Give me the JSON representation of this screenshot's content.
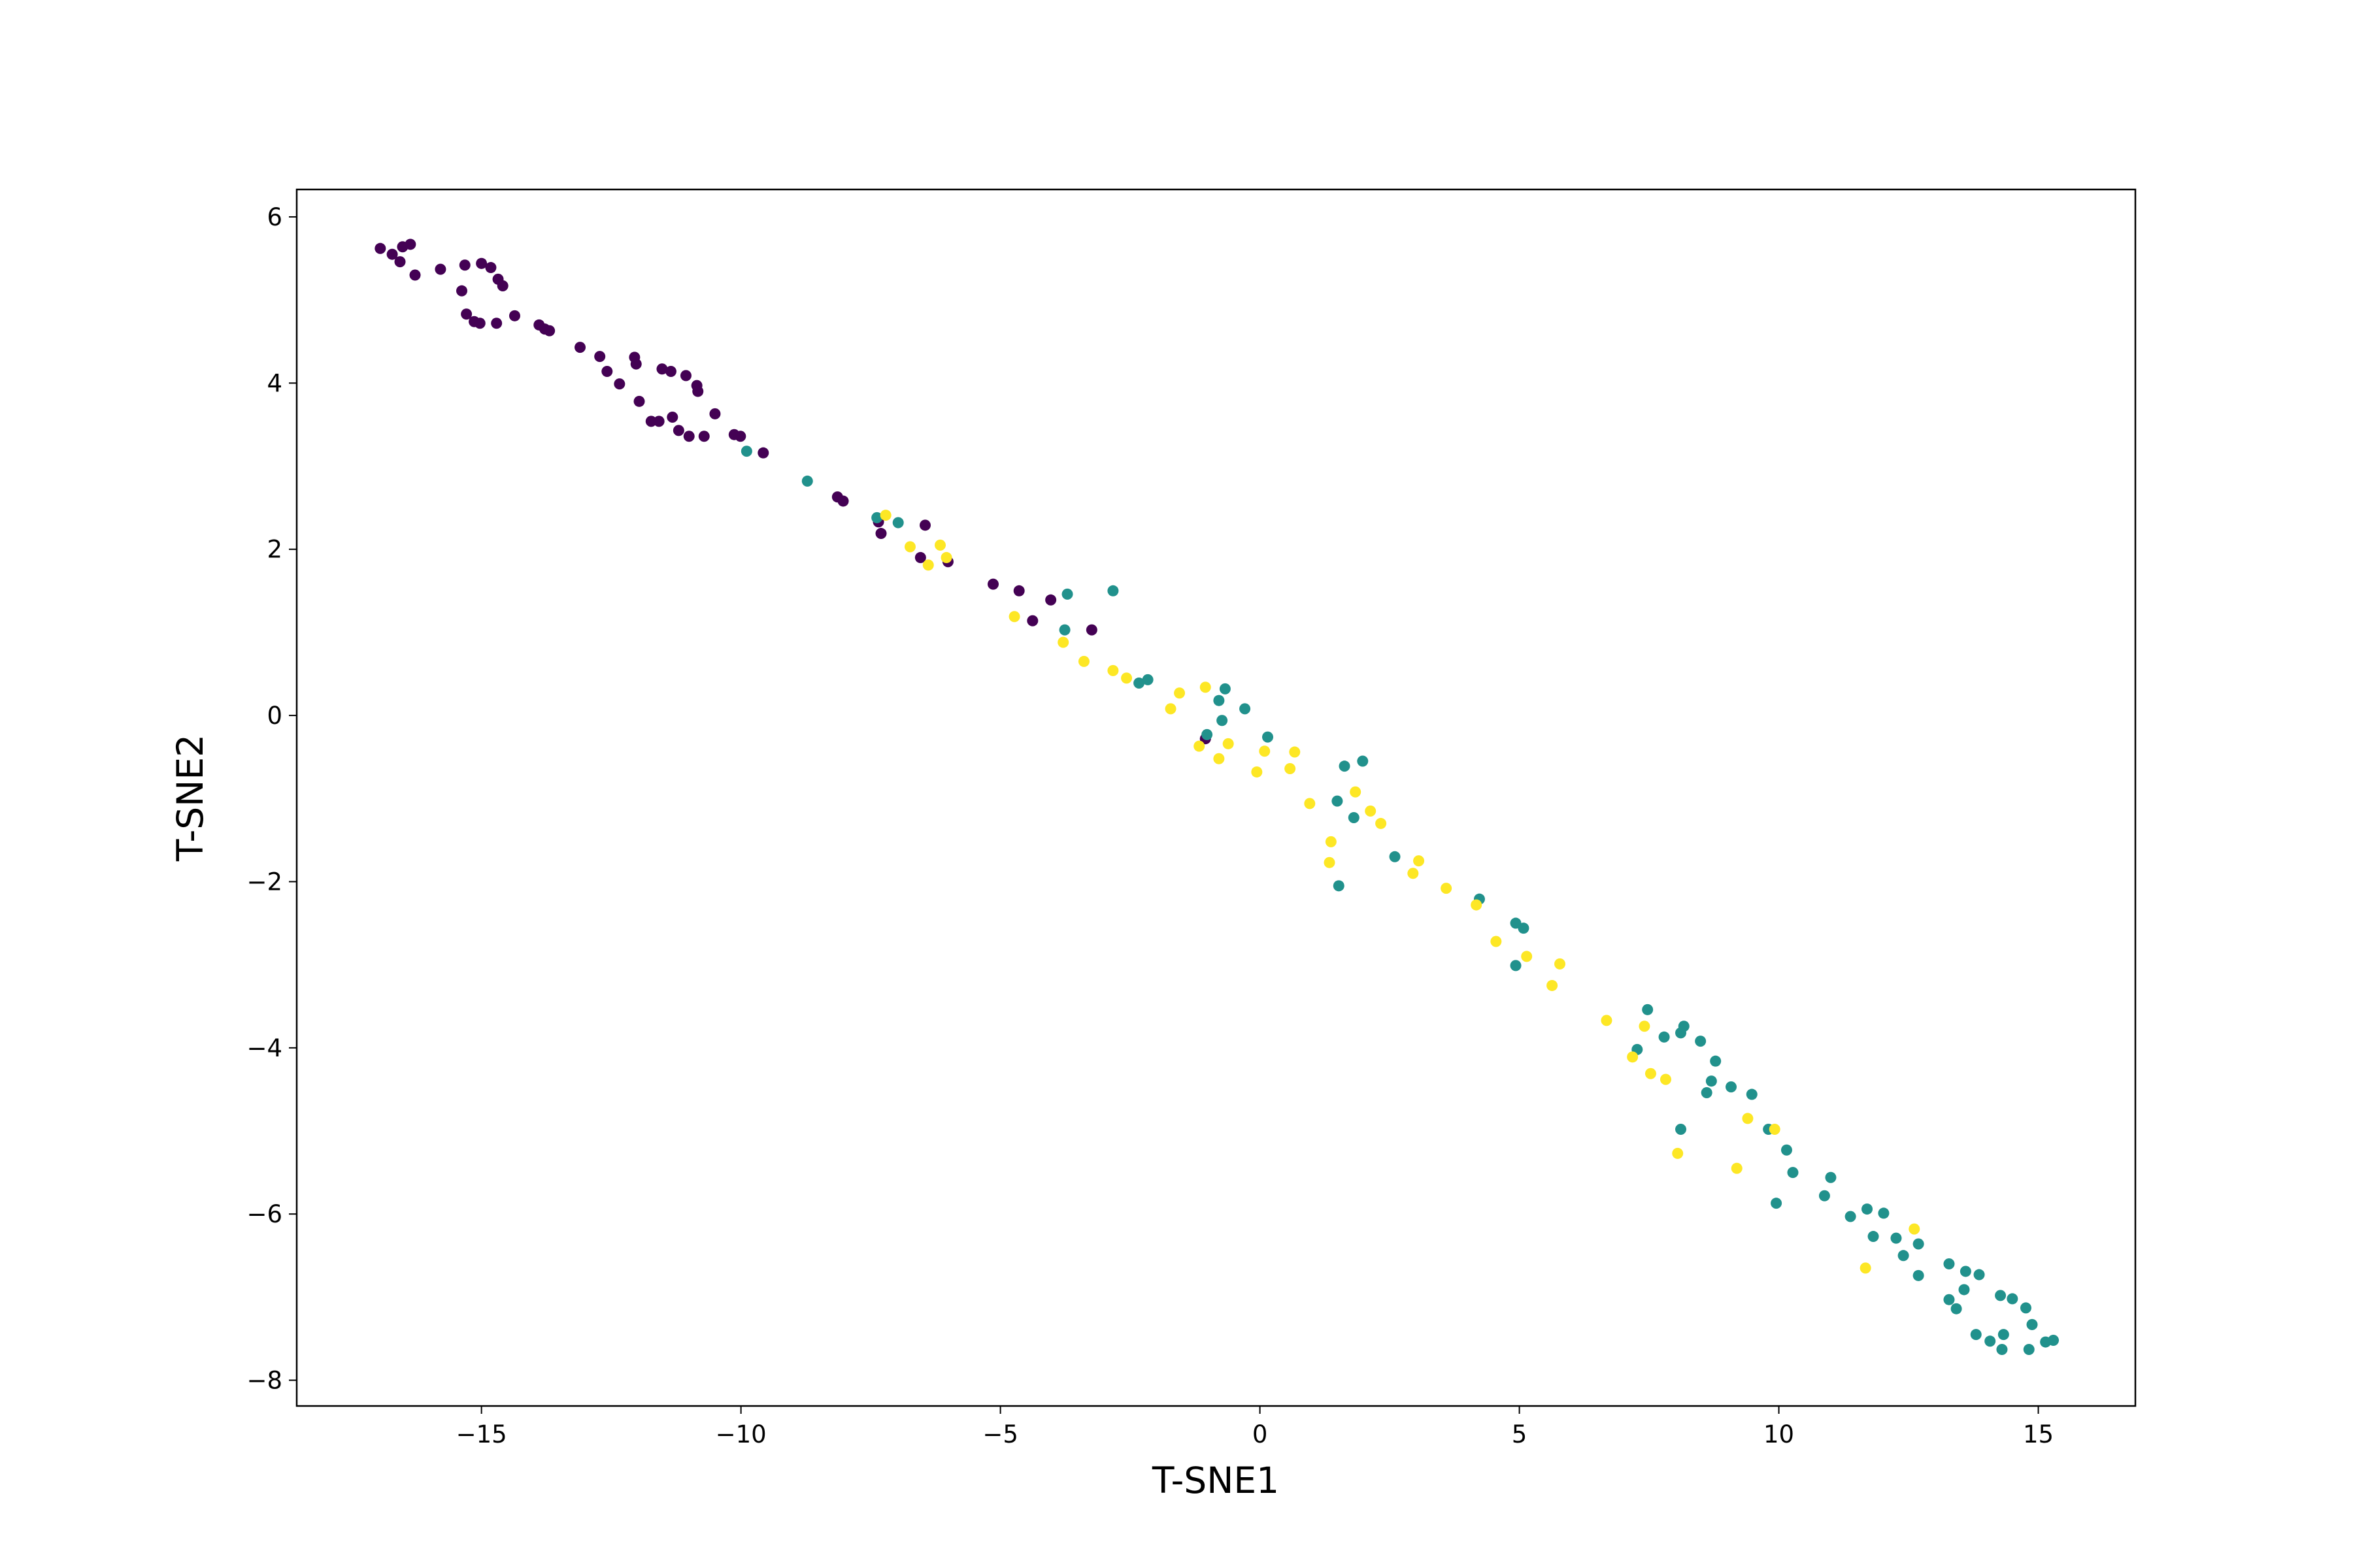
{
  "chart_data": {
    "type": "scatter",
    "x_label": "T-SNE1",
    "y_label": "T-SNE2",
    "xlim": [
      -18.56,
      16.87
    ],
    "ylim": [
      -8.31,
      6.33
    ],
    "xticks": [
      {
        "value": -15,
        "label": "−15"
      },
      {
        "value": -10,
        "label": "−10"
      },
      {
        "value": -5,
        "label": "−5"
      },
      0,
      5,
      10,
      15
    ],
    "yticks": [
      {
        "value": -8,
        "label": "−8"
      },
      {
        "value": -6,
        "label": "−6"
      },
      {
        "value": -4,
        "label": "−4"
      },
      {
        "value": -2,
        "label": "−2"
      },
      0,
      2,
      4,
      6
    ],
    "series": [
      {
        "color": "#440154",
        "x": [
          -16.95,
          -16.72,
          -16.57,
          -16.52,
          -16.37,
          -16.28,
          -15.79,
          -15.38,
          -15.32,
          -15.29,
          -15.14,
          -15.03,
          -15.0,
          -14.82,
          -14.68,
          -14.59,
          -14.71,
          -14.36,
          -13.89,
          -13.78,
          -13.69,
          -13.1,
          -12.72,
          -12.58,
          -12.34,
          -12.05,
          -12.02,
          -11.96,
          -11.73,
          -11.58,
          -11.52,
          -11.35,
          -11.32,
          -11.2,
          -11.06,
          -11.0,
          -10.85,
          -10.83,
          -10.71,
          -10.5,
          -10.13,
          -10.01,
          -9.57,
          -8.14,
          -8.03,
          -7.35,
          -7.3,
          -6.45,
          -6.54,
          -6.01,
          -5.14,
          -4.64,
          -4.38,
          -4.03,
          -3.24,
          -1.05
        ],
        "y": [
          5.62,
          5.55,
          5.46,
          5.64,
          5.67,
          5.3,
          5.37,
          5.11,
          5.42,
          4.83,
          4.74,
          4.72,
          5.44,
          5.39,
          5.25,
          5.17,
          4.72,
          4.81,
          4.7,
          4.65,
          4.63,
          4.43,
          4.32,
          4.14,
          3.99,
          4.31,
          4.23,
          3.78,
          3.54,
          3.54,
          4.17,
          4.14,
          3.59,
          3.43,
          4.09,
          3.36,
          3.97,
          3.9,
          3.36,
          3.63,
          3.38,
          3.36,
          3.16,
          2.63,
          2.58,
          2.33,
          2.19,
          2.29,
          1.9,
          1.85,
          1.58,
          1.5,
          1.14,
          1.39,
          1.03,
          -0.28
        ]
      },
      {
        "color": "#21918c",
        "x": [
          -9.89,
          -8.72,
          -7.38,
          -6.97,
          -3.71,
          -2.83,
          -3.76,
          -2.33,
          -2.16,
          -0.67,
          -0.79,
          -0.29,
          -0.73,
          0.15,
          -1.02,
          1.63,
          1.98,
          1.49,
          1.81,
          1.52,
          2.6,
          4.23,
          4.93,
          5.08,
          4.93,
          7.47,
          7.27,
          7.79,
          8.11,
          8.17,
          8.49,
          8.78,
          8.7,
          8.61,
          9.08,
          9.48,
          8.11,
          9.8,
          10.15,
          10.27,
          11.0,
          10.88,
          9.95,
          11.38,
          11.7,
          12.02,
          11.82,
          12.26,
          12.4,
          12.69,
          12.69,
          13.28,
          13.6,
          13.86,
          13.57,
          13.28,
          13.42,
          14.27,
          14.5,
          14.76,
          14.88,
          13.8,
          14.07,
          14.33,
          14.3,
          14.82,
          15.14,
          15.29
        ],
        "y": [
          3.18,
          2.82,
          2.38,
          2.32,
          1.46,
          1.5,
          1.03,
          0.39,
          0.43,
          0.32,
          0.18,
          0.08,
          -0.06,
          -0.26,
          -0.23,
          -0.61,
          -0.55,
          -1.03,
          -1.23,
          -2.05,
          -1.7,
          -2.21,
          -2.5,
          -2.56,
          -3.01,
          -3.54,
          -4.02,
          -3.87,
          -3.82,
          -3.74,
          -3.92,
          -4.16,
          -4.4,
          -4.54,
          -4.47,
          -4.56,
          -4.98,
          -4.98,
          -5.23,
          -5.5,
          -5.56,
          -5.78,
          -5.87,
          -6.03,
          -5.94,
          -5.99,
          -6.27,
          -6.29,
          -6.5,
          -6.36,
          -6.74,
          -6.6,
          -6.69,
          -6.73,
          -6.91,
          -7.03,
          -7.14,
          -6.98,
          -7.02,
          -7.13,
          -7.33,
          -7.45,
          -7.53,
          -7.45,
          -7.63,
          -7.63,
          -7.54,
          -7.52
        ]
      },
      {
        "color": "#fde725",
        "x": [
          -7.21,
          -6.74,
          -6.39,
          -6.16,
          -6.04,
          -4.73,
          -3.79,
          -3.39,
          -2.83,
          -2.57,
          -1.55,
          -1.05,
          -1.72,
          -1.17,
          -0.79,
          -0.61,
          0.09,
          -0.06,
          0.58,
          0.67,
          0.96,
          1.84,
          2.13,
          2.33,
          1.37,
          1.34,
          3.06,
          2.95,
          3.59,
          4.17,
          4.55,
          5.14,
          5.78,
          5.63,
          6.68,
          7.41,
          7.18,
          7.53,
          7.82,
          9.4,
          9.92,
          8.05,
          9.19,
          12.61,
          11.67
        ],
        "y": [
          2.41,
          2.03,
          1.81,
          2.05,
          1.9,
          1.19,
          0.88,
          0.65,
          0.54,
          0.45,
          0.27,
          0.34,
          0.08,
          -0.37,
          -0.52,
          -0.34,
          -0.43,
          -0.68,
          -0.64,
          -0.44,
          -1.06,
          -0.92,
          -1.15,
          -1.3,
          -1.52,
          -1.77,
          -1.75,
          -1.9,
          -2.08,
          -2.28,
          -2.72,
          -2.9,
          -2.99,
          -3.25,
          -3.67,
          -3.74,
          -4.11,
          -4.31,
          -4.38,
          -4.85,
          -4.98,
          -5.27,
          -5.45,
          -6.18,
          -6.65
        ]
      }
    ]
  }
}
